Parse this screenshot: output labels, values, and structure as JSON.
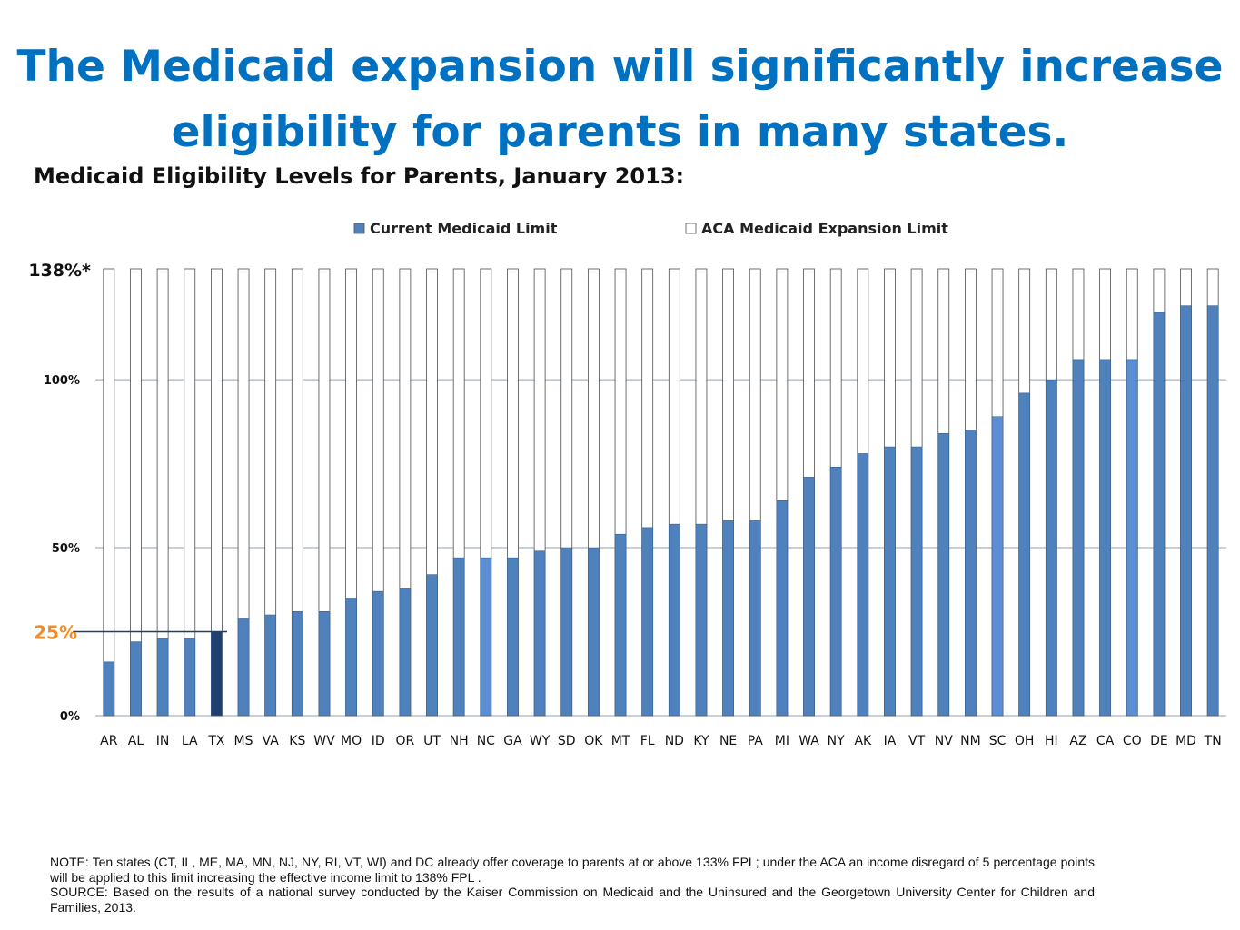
{
  "title": "The Medicaid expansion will significantly increase eligibility for parents in many states.",
  "subtitle": "Medicaid Eligibility Levels for Parents, January 2013:",
  "chart_data": {
    "type": "bar",
    "categories": [
      "AR",
      "AL",
      "IN",
      "LA",
      "TX",
      "MS",
      "VA",
      "KS",
      "WV",
      "MO",
      "ID",
      "OR",
      "UT",
      "NH",
      "NC",
      "GA",
      "WY",
      "SD",
      "OK",
      "MT",
      "FL",
      "ND",
      "KY",
      "NE",
      "PA",
      "MI",
      "WA",
      "NY",
      "AK",
      "IA",
      "VT",
      "NV",
      "NM",
      "SC",
      "OH",
      "HI",
      "AZ",
      "CA",
      "CO",
      "DE",
      "MD",
      "TN"
    ],
    "series": [
      {
        "name": "Current Medicaid Limit",
        "color": "#4f81bd",
        "values": [
          16,
          22,
          23,
          23,
          25,
          29,
          30,
          31,
          31,
          35,
          37,
          38,
          42,
          47,
          47,
          47,
          49,
          50,
          50,
          54,
          56,
          57,
          57,
          58,
          58,
          64,
          71,
          74,
          78,
          80,
          80,
          84,
          85,
          89,
          96,
          100,
          106,
          106,
          106,
          120,
          122,
          122
        ]
      },
      {
        "name": "ACA Medicaid Expansion Limit",
        "color": "#ffffff",
        "values": [
          133,
          133,
          133,
          133,
          133,
          133,
          133,
          133,
          133,
          133,
          133,
          133,
          133,
          133,
          133,
          133,
          133,
          133,
          133,
          133,
          133,
          133,
          133,
          133,
          133,
          133,
          133,
          133,
          133,
          133,
          133,
          133,
          133,
          133,
          133,
          133,
          133,
          133,
          133,
          133,
          133,
          133
        ]
      }
    ],
    "highlight": {
      "TX": "#1f3f6e",
      "NC": "#5b8fd1",
      "SC": "#5b8fd1",
      "CO": "#5b8fd1"
    },
    "y_ticks": [
      {
        "value": 0,
        "label": "0%"
      },
      {
        "value": 50,
        "label": "50%"
      },
      {
        "value": 100,
        "label": "100%"
      }
    ],
    "annotations": [
      {
        "value": 133,
        "label": "138%*",
        "color": "#111111"
      },
      {
        "value": 25,
        "label": "25%",
        "color": "#f28c28"
      }
    ],
    "ylim": [
      0,
      133
    ],
    "legend_position": "top",
    "grid": true
  },
  "note": {
    "line1": "NOTE: Ten states (CT, IL, ME, MA, MN, NJ, NY, RI, VT, WI) and DC already offer coverage to parents at or above 133% FPL; under the ACA an income disregard of 5 percentage points will be applied to this limit increasing the effective income limit to 138% FPL .",
    "line2": "SOURCE: Based on the results of a national survey conducted by the Kaiser Commission on Medicaid and the Uninsured and the Georgetown University Center for Children and Families, 2013."
  }
}
